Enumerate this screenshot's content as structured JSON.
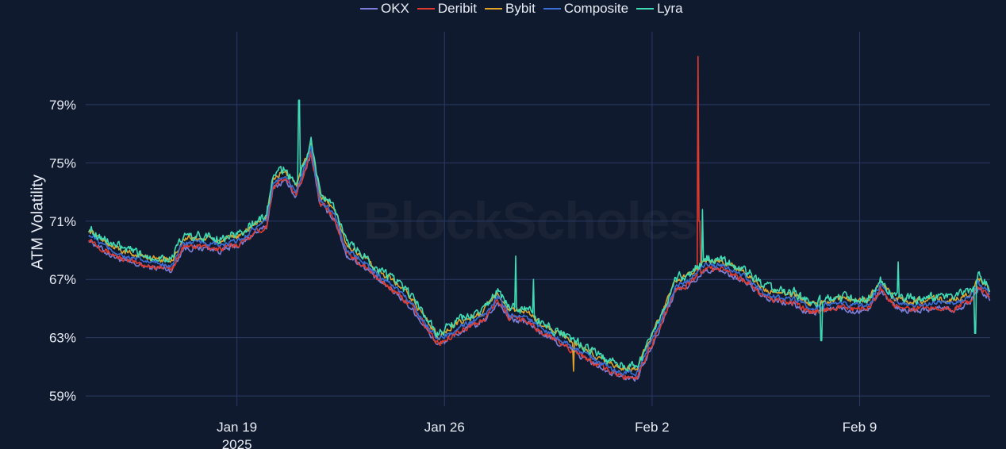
{
  "chart_data": {
    "type": "line",
    "ylabel": "ATM Volatility",
    "xlabel": "",
    "ylim": [
      58.3,
      84
    ],
    "y_ticks": [
      59,
      63,
      67,
      71,
      75,
      79
    ],
    "y_tick_suffix": "%",
    "x_ticks": [
      {
        "day": 19,
        "label": "Jan 19",
        "sublabel": "2025"
      },
      {
        "day": 26,
        "label": "Jan 26",
        "sublabel": ""
      },
      {
        "day": 33,
        "label": "Feb 2",
        "sublabel": ""
      },
      {
        "day": 40,
        "label": "Feb 9",
        "sublabel": ""
      }
    ],
    "xlim": [
      13.9,
      44.4
    ],
    "grid": true,
    "legend_position": "top",
    "watermark": "BlockScholes",
    "composite_anchors": [
      [
        14.0,
        70.1
      ],
      [
        14.6,
        69.2
      ],
      [
        15.3,
        68.5
      ],
      [
        16.0,
        68.2
      ],
      [
        16.8,
        68.0
      ],
      [
        17.2,
        69.5
      ],
      [
        18.0,
        69.5
      ],
      [
        18.5,
        69.3
      ],
      [
        19.2,
        69.8
      ],
      [
        19.5,
        70.4
      ],
      [
        20.0,
        70.9
      ],
      [
        20.2,
        73.5
      ],
      [
        20.6,
        74.2
      ],
      [
        21.0,
        73.0
      ],
      [
        21.5,
        76.0
      ],
      [
        21.8,
        72.5
      ],
      [
        22.3,
        71.5
      ],
      [
        22.7,
        69.0
      ],
      [
        23.2,
        68.4
      ],
      [
        23.8,
        67.2
      ],
      [
        24.4,
        66.4
      ],
      [
        25.0,
        65.1
      ],
      [
        25.5,
        63.6
      ],
      [
        25.8,
        62.8
      ],
      [
        26.2,
        63.4
      ],
      [
        26.8,
        64.0
      ],
      [
        27.3,
        64.4
      ],
      [
        27.8,
        65.8
      ],
      [
        28.2,
        64.6
      ],
      [
        28.8,
        64.4
      ],
      [
        29.3,
        63.6
      ],
      [
        30.0,
        62.8
      ],
      [
        30.5,
        62.2
      ],
      [
        31.0,
        61.6
      ],
      [
        31.5,
        61.0
      ],
      [
        32.0,
        60.6
      ],
      [
        32.5,
        60.6
      ],
      [
        32.8,
        62.0
      ],
      [
        33.3,
        64.2
      ],
      [
        33.8,
        66.6
      ],
      [
        34.3,
        67.0
      ],
      [
        34.8,
        68.0
      ],
      [
        35.3,
        68.0
      ],
      [
        35.8,
        67.5
      ],
      [
        36.3,
        67.0
      ],
      [
        36.8,
        66.0
      ],
      [
        37.3,
        65.8
      ],
      [
        37.8,
        65.6
      ],
      [
        38.3,
        65.0
      ],
      [
        38.8,
        65.2
      ],
      [
        39.3,
        65.4
      ],
      [
        39.8,
        65.2
      ],
      [
        40.3,
        65.3
      ],
      [
        40.7,
        66.6
      ],
      [
        41.2,
        65.4
      ],
      [
        41.7,
        65.2
      ],
      [
        42.2,
        65.3
      ],
      [
        42.7,
        65.4
      ],
      [
        43.2,
        65.3
      ],
      [
        43.7,
        65.7
      ],
      [
        44.0,
        66.8
      ],
      [
        44.4,
        66.0
      ]
    ],
    "series": [
      {
        "name": "OKX",
        "color": "#7b7fd9",
        "offset": -0.35,
        "noise": 0.35,
        "spikes": []
      },
      {
        "name": "Deribit",
        "color": "#e03a2e",
        "offset": -0.25,
        "noise": 0.35,
        "spikes": [
          {
            "day": 34.55,
            "value": 82.3
          },
          {
            "day": 34.6,
            "value": 71.0
          }
        ]
      },
      {
        "name": "Bybit",
        "color": "#e0a32a",
        "offset": 0.3,
        "noise": 0.35,
        "spikes": [
          {
            "day": 30.35,
            "value": 60.7
          }
        ]
      },
      {
        "name": "Composite",
        "color": "#3a6fd8",
        "offset": 0.0,
        "noise": 0.3,
        "spikes": []
      },
      {
        "name": "Lyra",
        "color": "#3ddcb4",
        "offset": 0.45,
        "noise": 0.55,
        "spikes": [
          {
            "day": 21.1,
            "value": 79.3
          },
          {
            "day": 28.4,
            "value": 68.6
          },
          {
            "day": 29.0,
            "value": 67.0
          },
          {
            "day": 34.7,
            "value": 71.8
          },
          {
            "day": 41.3,
            "value": 68.2
          },
          {
            "day": 38.7,
            "value": 62.8
          },
          {
            "day": 43.9,
            "value": 63.3
          }
        ]
      }
    ]
  }
}
